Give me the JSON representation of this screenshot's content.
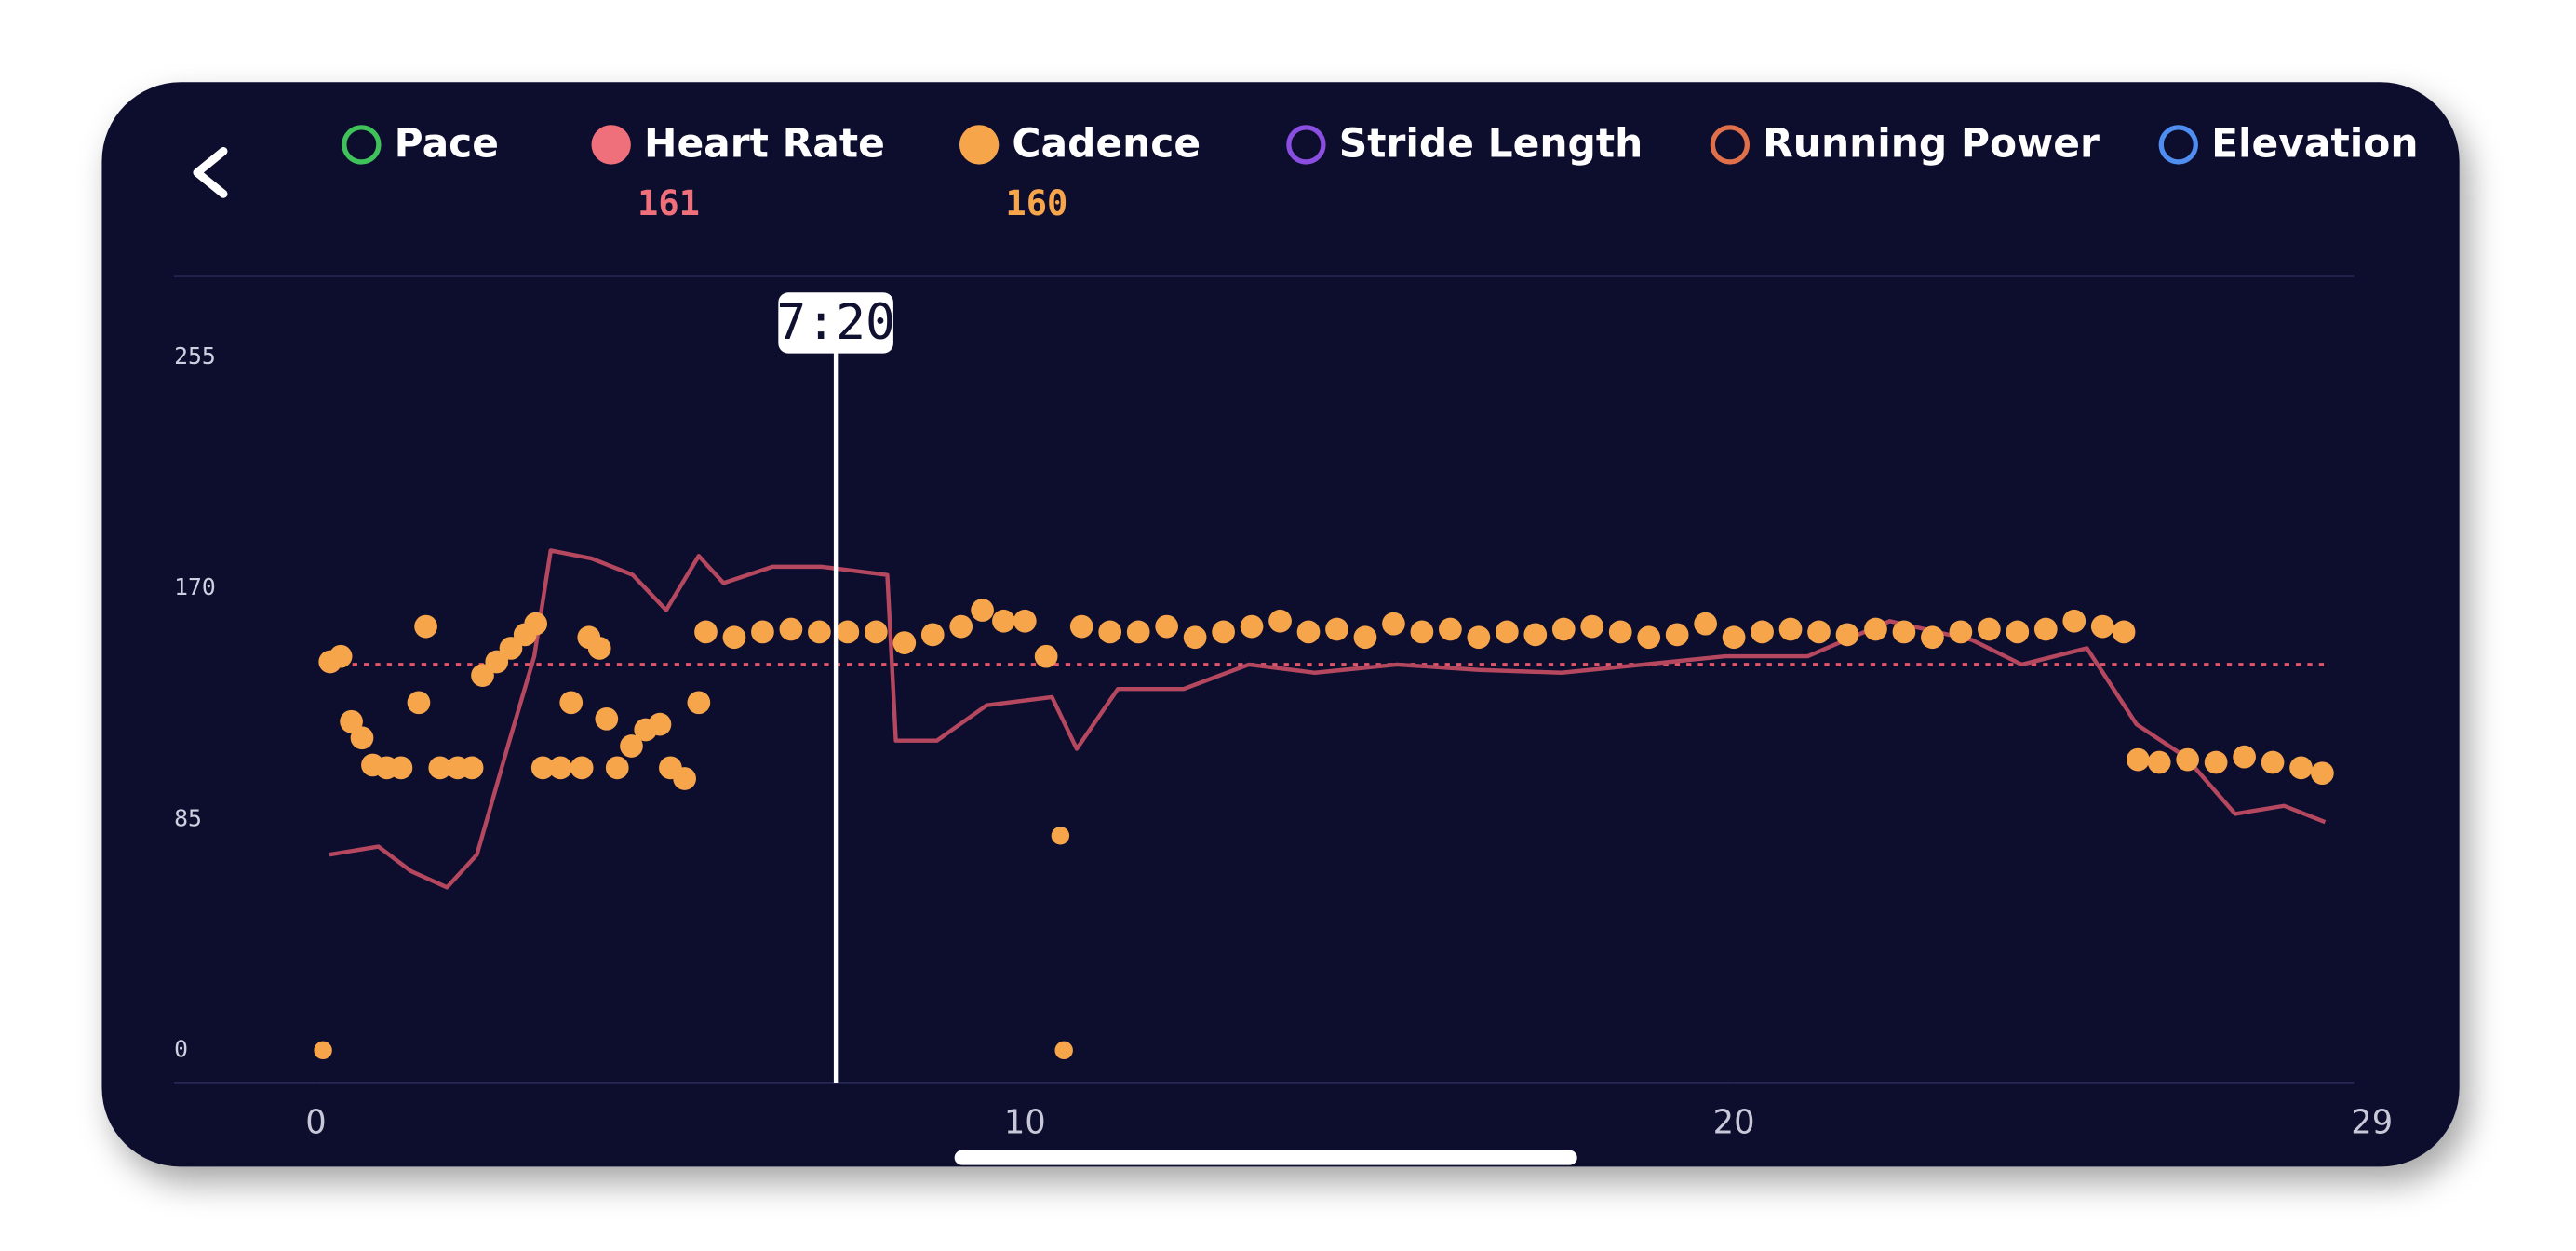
{
  "chart_data": {
    "type": "line",
    "legend": [
      {
        "name": "Pace",
        "color": "#3fc25a",
        "filled": false
      },
      {
        "name": "Heart Rate",
        "color": "#ef6f7a",
        "filled": true,
        "value": 161
      },
      {
        "name": "Cadence",
        "color": "#f6a54a",
        "filled": true,
        "value": 160
      },
      {
        "name": "Stride Length",
        "color": "#8a4fe0",
        "filled": false
      },
      {
        "name": "Running Power",
        "color": "#e0704a",
        "filled": false
      },
      {
        "name": "Elevation",
        "color": "#4f8ef0",
        "filled": false
      }
    ],
    "xlim": [
      -2,
      28.75
    ],
    "ylim": [
      -12,
      285
    ],
    "xticks": [
      0,
      10,
      20,
      29
    ],
    "yticks": [
      0,
      85,
      170,
      255
    ],
    "avg_line": {
      "value": 142,
      "color": "#e0556a"
    },
    "cursor": {
      "x": 7.333,
      "label": "7:20"
    },
    "series": [
      {
        "type": "line",
        "color": "#b5485f",
        "x": [
          0.19,
          0.88,
          1.34,
          1.85,
          2.27,
          2.73,
          3.08,
          3.31,
          3.89,
          4.47,
          4.94,
          5.4,
          5.75,
          6.44,
          7.14,
          8.06,
          8.18,
          8.76,
          9.46,
          10.38,
          10.73,
          11.31,
          12.24,
          13.16,
          14.09,
          15.25,
          16.41,
          17.57,
          18.73,
          19.88,
          21.04,
          22.2,
          23.36,
          24.06,
          24.98,
          25.68,
          26.37,
          27.07,
          27.76,
          28.34
        ],
        "values": [
          72,
          75,
          66,
          60,
          72,
          114,
          145,
          184,
          181,
          175,
          162,
          182,
          172,
          178,
          178,
          175,
          114,
          114,
          127,
          130,
          111,
          133,
          133,
          142,
          139,
          142,
          140,
          139,
          142,
          145,
          145,
          158,
          151,
          142,
          148,
          120,
          108,
          87,
          90,
          84
        ]
      },
      {
        "type": "scatter",
        "color": "#f6a54a",
        "x": [
          0.1,
          0.2,
          0.35,
          0.5,
          0.65,
          0.8,
          1.0,
          1.2,
          1.45,
          1.55,
          1.75,
          2.0,
          2.2,
          2.35,
          2.55,
          2.75,
          2.95,
          3.1,
          3.2,
          3.45,
          3.6,
          3.75,
          3.85,
          4.0,
          4.1,
          4.25,
          4.45,
          4.65,
          4.85,
          5.0,
          5.2,
          5.4,
          5.5,
          5.9,
          6.3,
          6.7,
          7.1,
          7.5,
          7.9,
          8.3,
          8.7,
          9.1,
          9.4,
          9.7,
          10.0,
          10.3,
          10.5,
          10.55,
          10.8,
          11.2,
          11.6,
          12.0,
          12.4,
          12.8,
          13.2,
          13.6,
          14.0,
          14.4,
          14.8,
          15.2,
          15.6,
          16.0,
          16.4,
          16.8,
          17.2,
          17.6,
          18.0,
          18.4,
          18.8,
          19.2,
          19.6,
          20.0,
          20.4,
          20.8,
          21.2,
          21.6,
          22.0,
          22.4,
          22.8,
          23.2,
          23.6,
          24.0,
          24.4,
          24.8,
          25.2,
          25.5,
          25.7,
          26.0,
          26.4,
          26.8,
          27.2,
          27.6,
          28.0,
          28.3
        ],
        "values": [
          0,
          143,
          145,
          121,
          115,
          105,
          104,
          104,
          128,
          156,
          104,
          104,
          104,
          138,
          143,
          148,
          153,
          157,
          104,
          104,
          128,
          104,
          152,
          148,
          122,
          104,
          112,
          118,
          120,
          104,
          100,
          128,
          154,
          152,
          154,
          155,
          154,
          154,
          154,
          150,
          153,
          156,
          162,
          158,
          158,
          145,
          79,
          0,
          156,
          154,
          154,
          156,
          152,
          154,
          156,
          158,
          154,
          155,
          152,
          157,
          154,
          155,
          152,
          154,
          153,
          155,
          156,
          154,
          152,
          153,
          157,
          152,
          154,
          155,
          154,
          153,
          155,
          154,
          152,
          154,
          155,
          154,
          155,
          158,
          156,
          154,
          107,
          106,
          107,
          106,
          108,
          106,
          104,
          102
        ]
      }
    ]
  }
}
